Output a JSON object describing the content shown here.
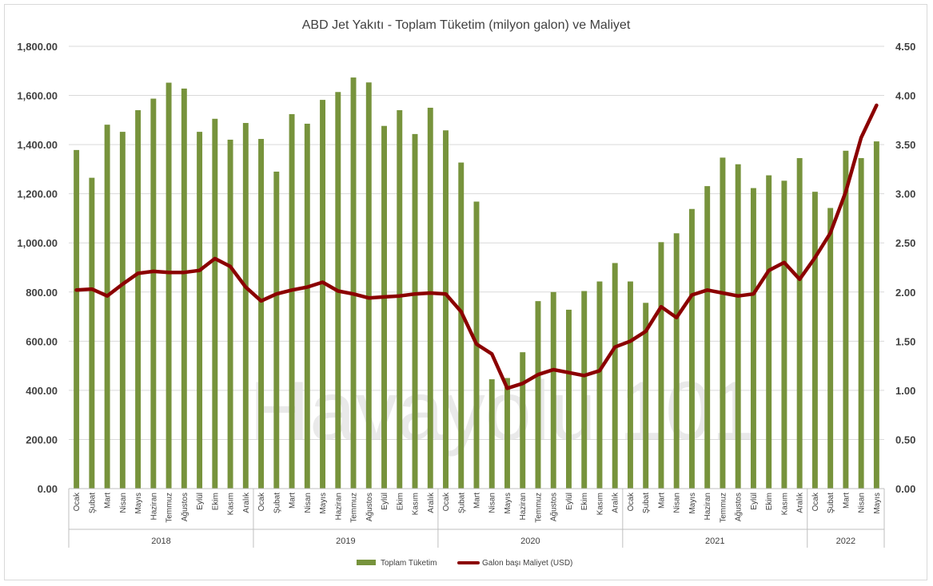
{
  "watermark": "Havayolu 101",
  "chart_data": {
    "type": "bar+line",
    "title": "ABD Jet Yakıtı - Toplam Tüketim (milyon galon) ve Maliyet",
    "months": [
      "Ocak",
      "Şubat",
      "Mart",
      "Nisan",
      "Mayıs",
      "Haziran",
      "Temmuz",
      "Ağustos",
      "Eylül",
      "Ekim",
      "Kasım",
      "Aralık",
      "Ocak",
      "Şubat",
      "Mart",
      "Nisan",
      "Mayıs",
      "Haziran",
      "Temmuz",
      "Ağustos",
      "Eylül",
      "Ekim",
      "Kasım",
      "Aralık",
      "Ocak",
      "Şubat",
      "Mart",
      "Nisan",
      "Mayıs",
      "Haziran",
      "Temmuz",
      "Ağustos",
      "Eylül",
      "Ekim",
      "Kasım",
      "Aralık",
      "Ocak",
      "Şubat",
      "Mart",
      "Nisan",
      "Mayıs",
      "Haziran",
      "Temmuz",
      "Ağustos",
      "Eylül",
      "Ekim",
      "Kasım",
      "Aralık",
      "Ocak",
      "Şubat",
      "Mart",
      "Nisan",
      "Mayıs"
    ],
    "years": [
      {
        "label": "2018",
        "count": 12
      },
      {
        "label": "2019",
        "count": 12
      },
      {
        "label": "2020",
        "count": 12
      },
      {
        "label": "2021",
        "count": 12
      },
      {
        "label": "2022",
        "count": 5
      }
    ],
    "y_left": {
      "min": 0,
      "max": 1800,
      "ticks": [
        "0.00",
        "200.00",
        "400.00",
        "600.00",
        "800.00",
        "1,000.00",
        "1,200.00",
        "1,400.00",
        "1,600.00",
        "1,800.00"
      ]
    },
    "y_right": {
      "min": 0,
      "max": 4.5,
      "ticks": [
        "0.00",
        "0.50",
        "1.00",
        "1.50",
        "2.00",
        "2.50",
        "3.00",
        "3.50",
        "4.00",
        "4.50"
      ]
    },
    "grid": true,
    "legend_position": "bottom",
    "series": [
      {
        "name": "Toplam Tüketim",
        "type": "bar",
        "axis": "left",
        "color": "#77933c",
        "values": [
          1378,
          1265,
          1481,
          1452,
          1540,
          1587,
          1652,
          1628,
          1452,
          1505,
          1420,
          1488,
          1423,
          1290,
          1524,
          1485,
          1582,
          1614,
          1673,
          1653,
          1476,
          1540,
          1443,
          1550,
          1458,
          1327,
          1168,
          445,
          450,
          555,
          763,
          800,
          728,
          804,
          843,
          918,
          843,
          756,
          1003,
          1039,
          1138,
          1231,
          1347,
          1320,
          1223,
          1275,
          1253,
          1345,
          1208,
          1142,
          1375,
          1345,
          1413
        ]
      },
      {
        "name": "Galon başı Maliyet (USD)",
        "type": "line",
        "axis": "right",
        "color": "#8b0000",
        "values": [
          2.02,
          2.03,
          1.96,
          2.08,
          2.19,
          2.21,
          2.2,
          2.2,
          2.22,
          2.34,
          2.26,
          2.05,
          1.91,
          1.98,
          2.02,
          2.05,
          2.1,
          2.01,
          1.98,
          1.94,
          1.95,
          1.96,
          1.98,
          1.99,
          1.98,
          1.8,
          1.47,
          1.37,
          1.02,
          1.07,
          1.16,
          1.21,
          1.18,
          1.15,
          1.2,
          1.44,
          1.5,
          1.6,
          1.85,
          1.74,
          1.97,
          2.02,
          1.99,
          1.96,
          1.98,
          2.22,
          2.3,
          2.13,
          2.35,
          2.6,
          3.02,
          3.57,
          3.9
        ]
      }
    ]
  }
}
